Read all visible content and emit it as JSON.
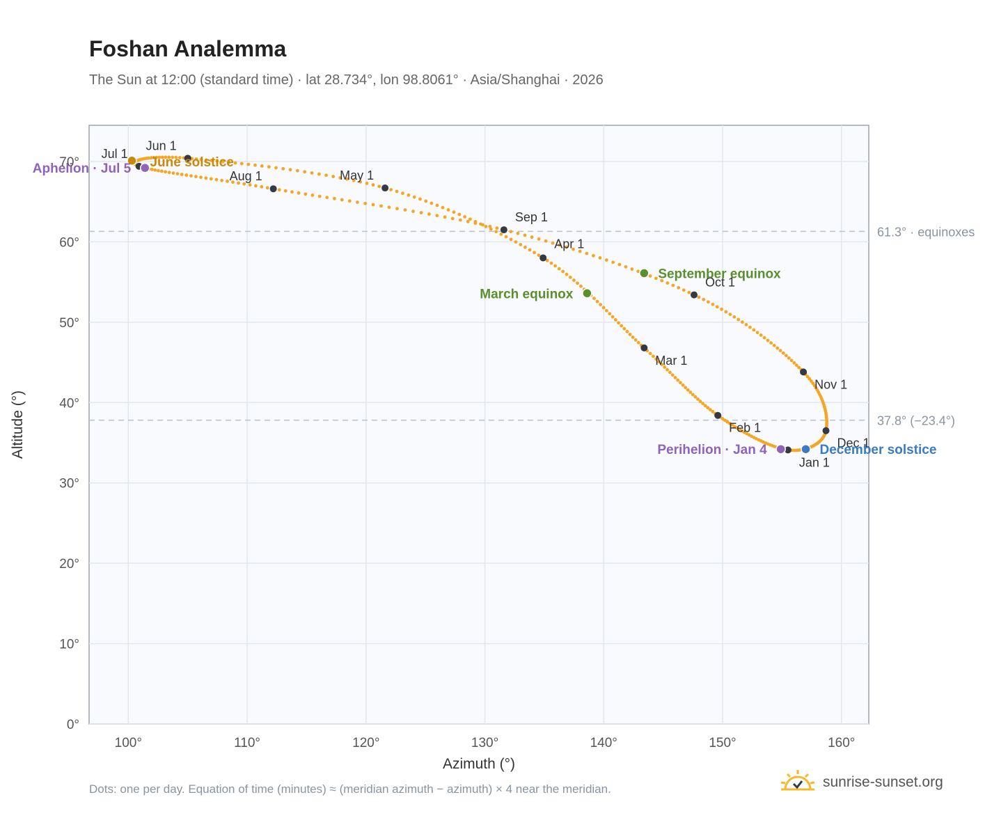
{
  "header": {
    "title": "Foshan Analemma",
    "subtitle": "The Sun at 12:00 (standard time) · lat 28.734°, lon 98.8061° · Asia/Shanghai · 2026"
  },
  "footnote": "Dots: one per day. Equation of time (minutes) ≈ (meridian azimuth − azimuth) × 4 near the meridian.",
  "brand": {
    "name": "sunrise-sunset.org",
    "icon": "sun-logo-icon"
  },
  "colors": {
    "curve": "#f5a623",
    "month_marker": "#333a44",
    "equinox": "#5a8f2e",
    "perihelion_aphelion": "#8e63b8",
    "june_solstice": "#c98a0c",
    "december_solstice": "#3b7bbf",
    "plot_bg": "#f8fafd",
    "grid": "#e2e7ee",
    "reference_line": "#b9c2cc"
  },
  "chart_data": {
    "type": "scatter",
    "xlabel": "Azimuth (°)",
    "ylabel": "Altitude (°)",
    "xlim": [
      96.7,
      162.3
    ],
    "ylim": [
      0,
      74.5
    ],
    "xticks": [
      "100°",
      "110°",
      "120°",
      "130°",
      "140°",
      "150°",
      "160°"
    ],
    "xtick_values": [
      100,
      110,
      120,
      130,
      140,
      150,
      160
    ],
    "yticks": [
      "0°",
      "10°",
      "20°",
      "30°",
      "40°",
      "50°",
      "60°",
      "70°"
    ],
    "ytick_values": [
      0,
      10,
      20,
      30,
      40,
      50,
      60,
      70
    ],
    "grid": true,
    "reference_lines": [
      {
        "y": 61.3,
        "label": "61.3° · equinoxes"
      },
      {
        "y": 37.8,
        "label": "37.8° (−23.4°)"
      }
    ],
    "month_points": [
      {
        "label": "Jan 1",
        "az": 155.5,
        "alt": 34.1
      },
      {
        "label": "Feb 1",
        "az": 149.6,
        "alt": 38.4
      },
      {
        "label": "Mar 1",
        "az": 143.4,
        "alt": 46.8
      },
      {
        "label": "Apr 1",
        "az": 134.9,
        "alt": 58.0
      },
      {
        "label": "May 1",
        "az": 121.6,
        "alt": 66.7
      },
      {
        "label": "Jun 1",
        "az": 105.0,
        "alt": 70.4
      },
      {
        "label": "Jul 1",
        "az": 100.9,
        "alt": 69.4
      },
      {
        "label": "Aug 1",
        "az": 112.2,
        "alt": 66.6
      },
      {
        "label": "Sep 1",
        "az": 131.6,
        "alt": 61.5
      },
      {
        "label": "Oct 1",
        "az": 147.6,
        "alt": 53.4
      },
      {
        "label": "Nov 1",
        "az": 156.8,
        "alt": 43.8
      },
      {
        "label": "Dec 1",
        "az": 158.7,
        "alt": 36.5
      }
    ],
    "special_points": [
      {
        "label": "March equinox",
        "az": 138.6,
        "alt": 53.6,
        "kind": "equinox"
      },
      {
        "label": "September equinox",
        "az": 143.4,
        "alt": 56.1,
        "kind": "equinox"
      },
      {
        "label": "June solstice",
        "az": 100.3,
        "alt": 70.1,
        "kind": "june_solstice"
      },
      {
        "label": "December solstice",
        "az": 157.0,
        "alt": 34.2,
        "kind": "december_solstice"
      },
      {
        "label": "Perihelion · Jan 4",
        "az": 154.9,
        "alt": 34.2,
        "kind": "perihelion_aphelion"
      },
      {
        "label": "Aphelion · Jul 5",
        "az": 101.4,
        "alt": 69.2,
        "kind": "perihelion_aphelion"
      }
    ]
  }
}
